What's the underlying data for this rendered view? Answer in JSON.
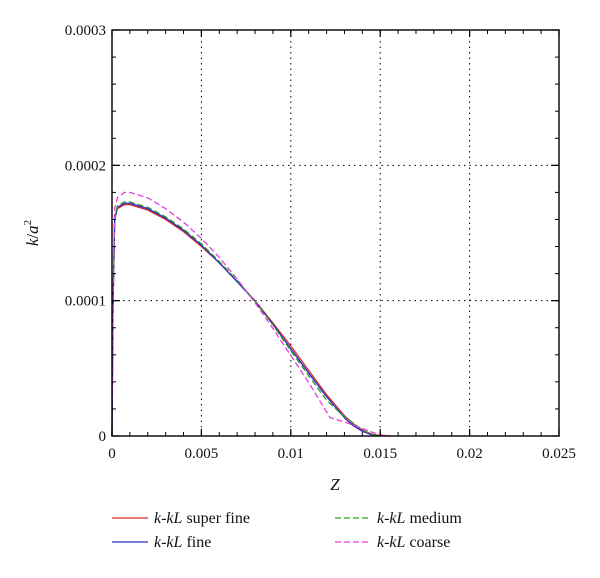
{
  "chart_data": {
    "type": "line",
    "xlabel": "Z",
    "ylabel_main": "k",
    "ylabel_sep": "/",
    "ylabel_base": "a",
    "ylabel_sup": "2",
    "xlim": [
      0,
      0.025
    ],
    "ylim": [
      0,
      0.0003
    ],
    "xticks": [
      "0",
      "0.005",
      "0.01",
      "0.015",
      "0.02",
      "0.025"
    ],
    "yticks": [
      "0",
      "0.0001",
      "0.0002",
      "0.0003"
    ],
    "grid": "dotted",
    "legend_position": "bottom",
    "series": [
      {
        "name_italic": "k-kL",
        "name_rest": " super fine",
        "color": "#d62728",
        "dash": "solid",
        "points": [
          [
            0,
            0
          ],
          [
            5e-05,
            9e-05
          ],
          [
            0.00015,
            0.00016
          ],
          [
            0.0003,
            0.000168
          ],
          [
            0.0007,
            0.000171
          ],
          [
            0.001,
            0.000171
          ],
          [
            0.002,
            0.000167
          ],
          [
            0.003,
            0.00016
          ],
          [
            0.004,
            0.000151
          ],
          [
            0.005,
            0.00014
          ],
          [
            0.006,
            0.000128
          ],
          [
            0.007,
            0.000114
          ],
          [
            0.008,
            0.0001
          ],
          [
            0.009,
            8.35e-05
          ],
          [
            0.01,
            6.65e-05
          ],
          [
            0.011,
            4.85e-05
          ],
          [
            0.012,
            3.05e-05
          ],
          [
            0.013,
            1.5e-05
          ],
          [
            0.0135,
            9e-06
          ],
          [
            0.014,
            4.5e-06
          ],
          [
            0.0145,
            1.5e-06
          ],
          [
            0.015,
            3e-07
          ],
          [
            0.0155,
            0
          ]
        ]
      },
      {
        "name_italic": "k-kL",
        "name_rest": " fine",
        "color": "#2a2acd",
        "dash": "solid",
        "points": [
          [
            0,
            0
          ],
          [
            5e-05,
            9e-05
          ],
          [
            0.00015,
            0.00016
          ],
          [
            0.0003,
            0.000169
          ],
          [
            0.0007,
            0.000172
          ],
          [
            0.001,
            0.000172
          ],
          [
            0.002,
            0.000168
          ],
          [
            0.003,
            0.000161
          ],
          [
            0.004,
            0.000152
          ],
          [
            0.005,
            0.000141
          ],
          [
            0.006,
            0.000128
          ],
          [
            0.007,
            0.000114
          ],
          [
            0.008,
            9.95e-05
          ],
          [
            0.009,
            8.25e-05
          ],
          [
            0.01,
            6.45e-05
          ],
          [
            0.011,
            4.65e-05
          ],
          [
            0.012,
            2.9e-05
          ],
          [
            0.013,
            1.35e-05
          ],
          [
            0.0135,
            7.5e-06
          ],
          [
            0.014,
            3.5e-06
          ],
          [
            0.0145,
            1e-06
          ],
          [
            0.015,
            0
          ]
        ]
      },
      {
        "name_italic": "k-kL",
        "name_rest": " medium",
        "color": "#2ca02c",
        "dash": "dashed",
        "points": [
          [
            0,
            0
          ],
          [
            5e-05,
            9e-05
          ],
          [
            0.00015,
            0.00016
          ],
          [
            0.0003,
            0.00017
          ],
          [
            0.0007,
            0.000173
          ],
          [
            0.001,
            0.000173
          ],
          [
            0.002,
            0.000169
          ],
          [
            0.003,
            0.000162
          ],
          [
            0.004,
            0.000153
          ],
          [
            0.005,
            0.000142
          ],
          [
            0.006,
            0.000129
          ],
          [
            0.007,
            0.000115
          ],
          [
            0.008,
            9.95e-05
          ],
          [
            0.009,
            8.2e-05
          ],
          [
            0.01,
            6.3e-05
          ],
          [
            0.011,
            4.45e-05
          ],
          [
            0.012,
            2.65e-05
          ],
          [
            0.0128,
            1.65e-05
          ],
          [
            0.0135,
            9.5e-06
          ],
          [
            0.014,
            4.5e-06
          ],
          [
            0.0145,
            1.2e-06
          ],
          [
            0.015,
            0
          ]
        ]
      },
      {
        "name_italic": "k-kL",
        "name_rest": " coarse",
        "color": "#e040e0",
        "dash": "dashed",
        "points": [
          [
            0,
            0
          ],
          [
            5e-05,
            0.0001
          ],
          [
            0.00015,
            0.000168
          ],
          [
            0.0003,
            0.000176
          ],
          [
            0.0007,
            0.00018
          ],
          [
            0.001,
            0.00018
          ],
          [
            0.002,
            0.000176
          ],
          [
            0.003,
            0.000168
          ],
          [
            0.004,
            0.000158
          ],
          [
            0.005,
            0.000146
          ],
          [
            0.006,
            0.000132
          ],
          [
            0.007,
            0.000116
          ],
          [
            0.008,
            9.85e-05
          ],
          [
            0.009,
            7.95e-05
          ],
          [
            0.01,
            5.95e-05
          ],
          [
            0.011,
            3.95e-05
          ],
          [
            0.0122,
            1.35e-05
          ],
          [
            0.013,
            1.05e-05
          ],
          [
            0.0138,
            6.5e-06
          ],
          [
            0.0146,
            2.5e-06
          ],
          [
            0.0152,
            5e-07
          ],
          [
            0.0156,
            0
          ]
        ]
      }
    ]
  }
}
